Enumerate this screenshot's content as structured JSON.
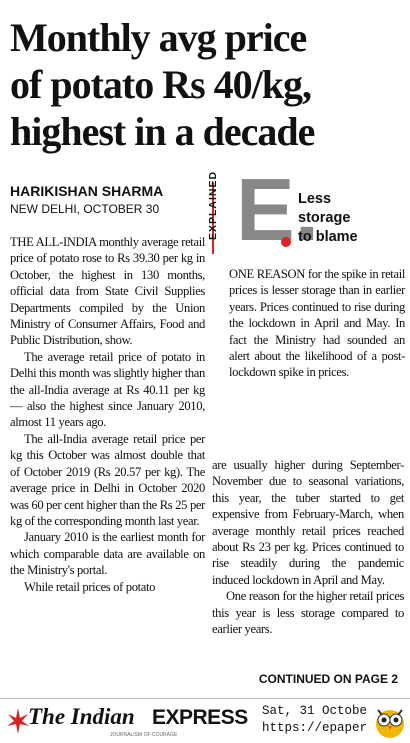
{
  "headline": [
    "Monthly avg price",
    "of potato Rs 40/kg,",
    "highest in a decade"
  ],
  "byline": {
    "author": "HARIKISHAN SHARMA",
    "dateline": "NEW DELHI, OCTOBER 30"
  },
  "left_column": [
    "THE ALL-INDIA monthly average retail price of potato rose to Rs 39.30 per kg in October, the highest in 130 months, official data from State Civil Supplies Departments compiled by the Union Ministry of Consumer Affairs, Food and Public Distribution, show.",
    "The average retail price of potato in Delhi this month was slightly higher than the all-India average at Rs 40.11 per kg — also the highest since January 2010, almost 11 years ago.",
    "The all-India average retail price per kg this October was almost double that of October 2019 (Rs 20.57 per kg). The average price in Delhi in October 2020 was 60 per cent higher than the Rs 25 per kg of the corresponding month last year.",
    "January 2010 is the earliest month for which comparable data are available on the Ministry's portal.",
    "While retail prices of potato"
  ],
  "explained": {
    "label": "EXPLAINED",
    "letter": "E.",
    "title": [
      "Less",
      "storage",
      "to blame"
    ],
    "text": "ONE REASON for the spike in retail prices is lesser storage than in earlier years. Prices continued to rise during the lockdown in April and May. In fact the Ministry had sounded an alert about the likelihood of a post-lockdown spike in prices."
  },
  "right_column": [
    "are usually higher during September-November due to seasonal variations, this year, the tuber started to get expensive from February-March, when average monthly retail prices reached about Rs 23 per kg. Prices continued to rise steadily during the pandemic induced lockdown in April and May.",
    "One reason for the higher retail prices this year is less storage compared to earlier years."
  ],
  "continued": "CONTINUED ON PAGE 2",
  "footer": {
    "logo_the": "The Indian",
    "logo_express": "EXPRESS",
    "tagline": "JOURNALISM OF COURAGE",
    "date": "Sat, 31 Octobe",
    "url": "https://epaper"
  }
}
